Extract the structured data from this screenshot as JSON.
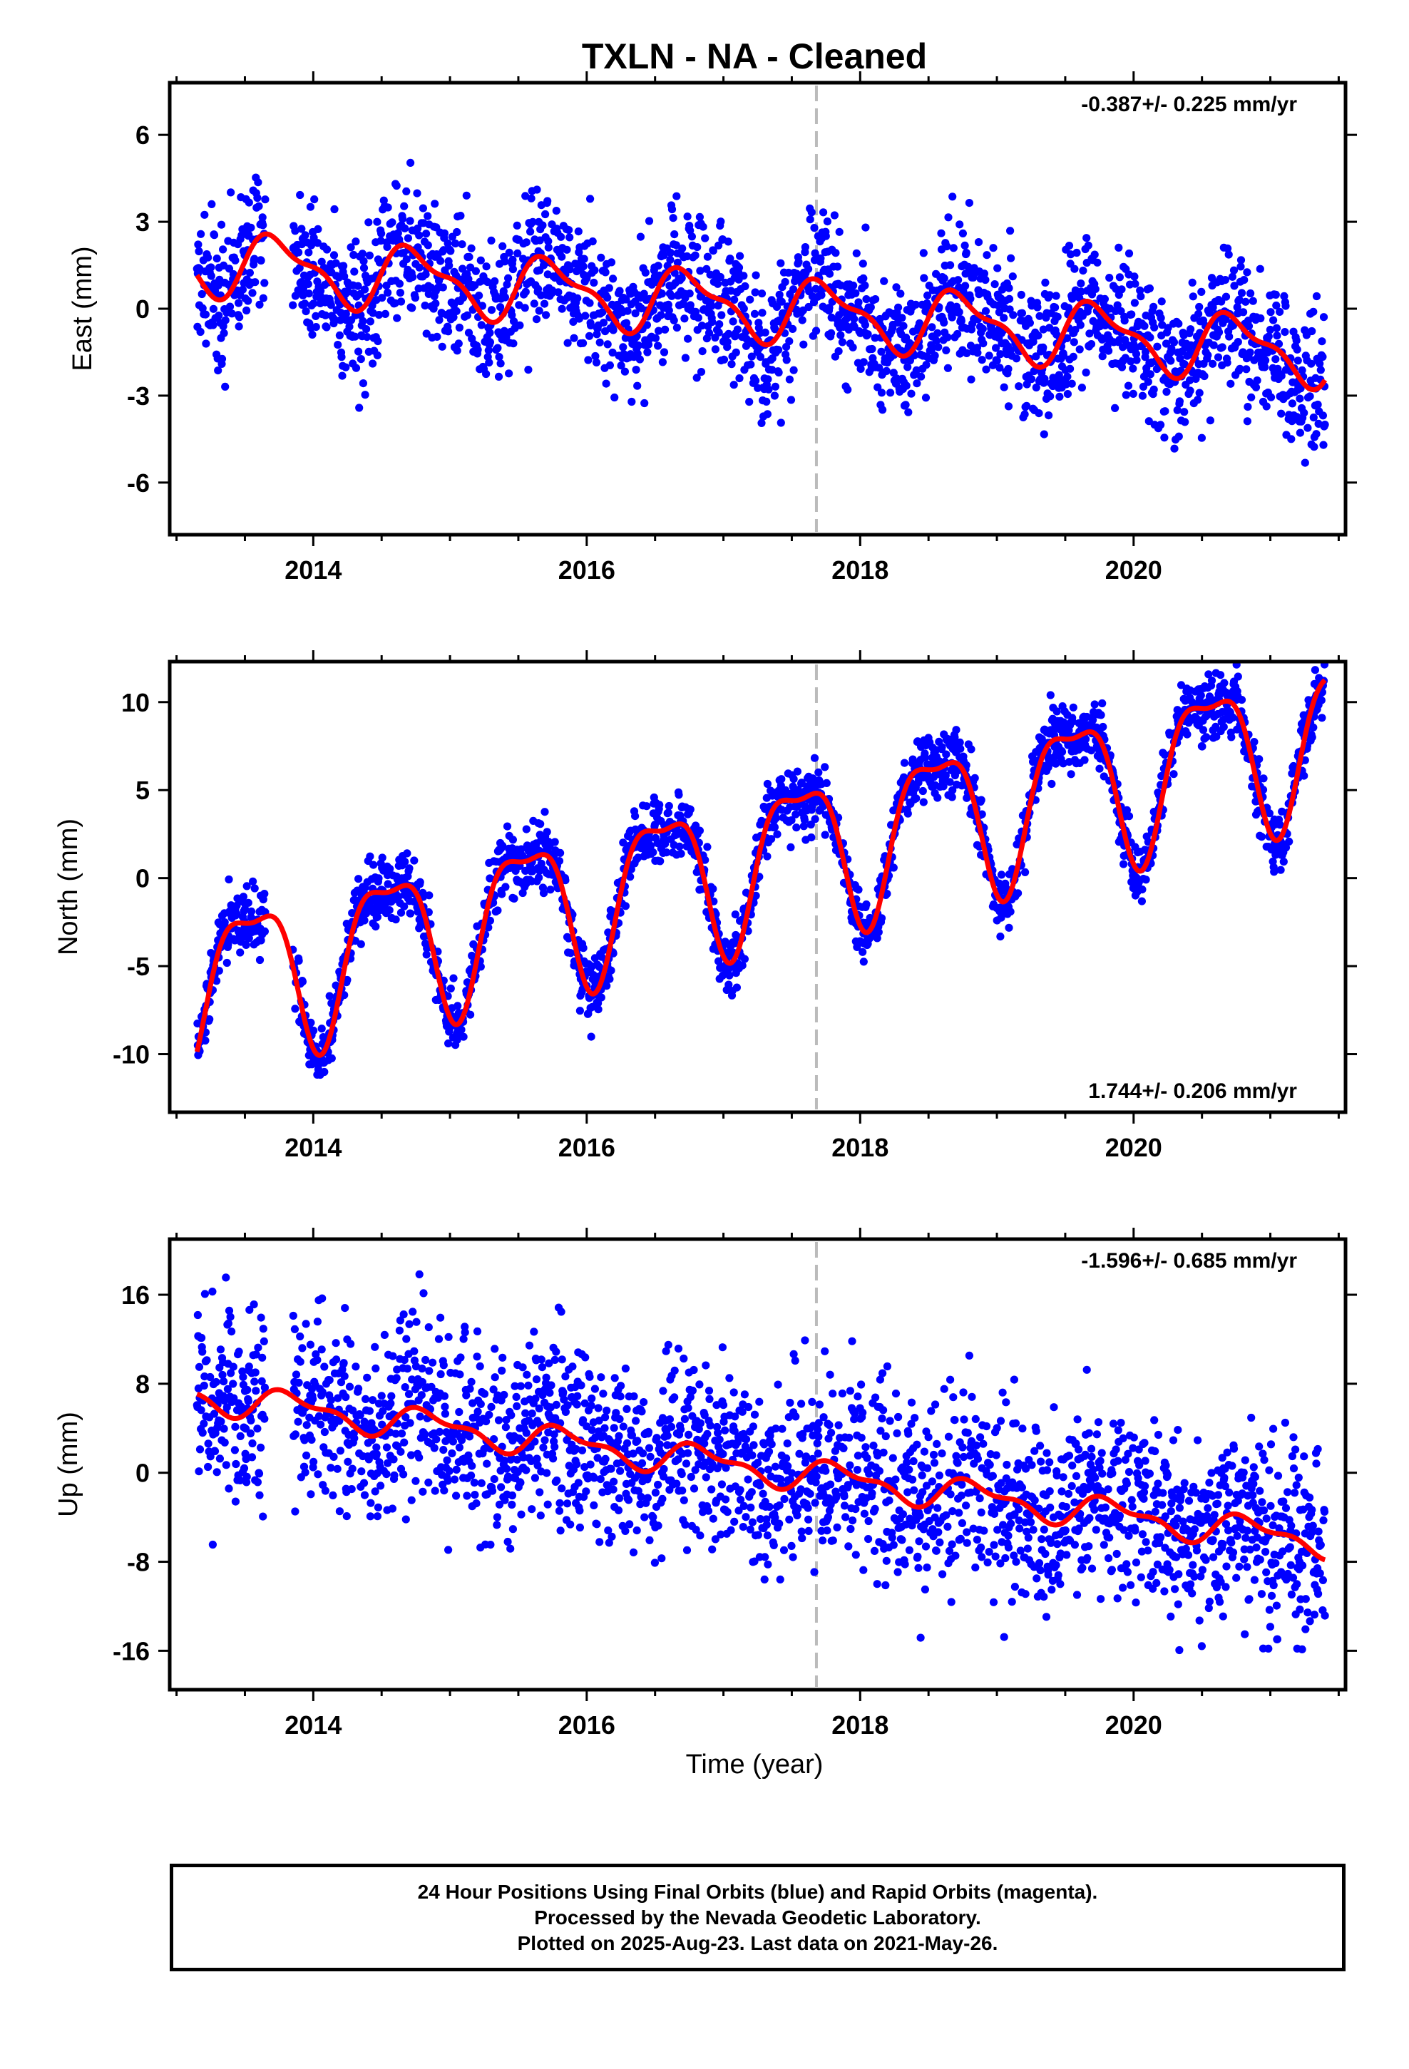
{
  "colors": {
    "final_orbits": "#0000ff",
    "model_fit": "#ff0000",
    "event_line": "#bbbbbb",
    "frame": "#000000"
  },
  "title": "TXLN  - NA - Cleaned",
  "xlabel": "Time (year)",
  "caption": {
    "line1": "24 Hour Positions Using Final Orbits (blue) and Rapid Orbits (magenta).",
    "line2": "Processed by the Nevada Geodetic Laboratory.",
    "line3": "Plotted on 2025-Aug-23. Last data on 2021-May-26."
  },
  "chart_data": [
    {
      "type": "scatter",
      "component": "east",
      "ylabel": "East (mm)",
      "rate_text": "-0.387+/- 0.225 mm/yr",
      "rate_position": "top-right",
      "xlim": [
        2012.95,
        2021.55
      ],
      "ylim": [
        -7.8,
        7.8
      ],
      "xticks": [
        2014,
        2016,
        2018,
        2020
      ],
      "xtick_labels": [
        "2014",
        "2016",
        "2018",
        "2020"
      ],
      "yticks": [
        -6,
        -3,
        0,
        3,
        6
      ],
      "ytick_labels": [
        "-6",
        "-3",
        "0",
        "3",
        "6"
      ],
      "event_line_x": 2017.68,
      "data_start": 2013.15,
      "data_end": 2021.4,
      "data_gap": [
        2013.65,
        2013.85
      ],
      "model": {
        "trend_intercept_2013": 1.7,
        "trend_rate": -0.387,
        "annual_amplitude": 1.0,
        "annual_peak": 0.75,
        "semiannual_amplitude": 0.4,
        "semiannual_peak": 0.1
      },
      "noise_sigma": 1.2,
      "series": [
        {
          "name": "Final Orbits",
          "color": "#0000ff",
          "kind": "points"
        },
        {
          "name": "Model fit",
          "color": "#ff0000",
          "kind": "line"
        }
      ]
    },
    {
      "type": "scatter",
      "component": "north",
      "ylabel": "North (mm)",
      "rate_text": "1.744+/- 0.206 mm/yr",
      "rate_position": "bottom-right",
      "xlim": [
        2012.95,
        2021.55
      ],
      "ylim": [
        -13.3,
        12.3
      ],
      "xticks": [
        2014,
        2016,
        2018,
        2020
      ],
      "xtick_labels": [
        "2014",
        "2016",
        "2018",
        "2020"
      ],
      "yticks": [
        -10,
        -5,
        0,
        5,
        10
      ],
      "ytick_labels": [
        "-10",
        "-5",
        "0",
        "5",
        "10"
      ],
      "event_line_x": 2017.68,
      "data_start": 2013.15,
      "data_end": 2021.4,
      "data_gap": [
        2013.65,
        2013.85
      ],
      "model": {
        "trend_intercept_2013": -6.3,
        "trend_rate": 1.744,
        "annual_amplitude": 4.2,
        "annual_peak": 0.55,
        "semiannual_amplitude": 1.4,
        "semiannual_peak": 0.3
      },
      "noise_sigma": 0.9,
      "series": [
        {
          "name": "Final Orbits",
          "color": "#0000ff",
          "kind": "points"
        },
        {
          "name": "Model fit",
          "color": "#ff0000",
          "kind": "line"
        }
      ]
    },
    {
      "type": "scatter",
      "component": "up",
      "ylabel": "Up (mm)",
      "rate_text": "-1.596+/- 0.685 mm/yr",
      "rate_position": "top-right",
      "xlim": [
        2012.95,
        2021.55
      ],
      "ylim": [
        -19.5,
        21.0
      ],
      "xticks": [
        2014,
        2016,
        2018,
        2020
      ],
      "xtick_labels": [
        "2014",
        "2016",
        "2018",
        "2020"
      ],
      "yticks": [
        -16,
        -8,
        0,
        8,
        16
      ],
      "ytick_labels": [
        "-16",
        "-8",
        "0",
        "8",
        "16"
      ],
      "event_line_x": 2017.68,
      "data_start": 2013.15,
      "data_end": 2021.4,
      "data_gap": [
        2013.65,
        2013.85
      ],
      "model": {
        "trend_intercept_2013": 7.2,
        "trend_rate": -1.596,
        "annual_amplitude": 1.2,
        "annual_peak": 0.85,
        "semiannual_amplitude": 0.6,
        "semiannual_peak": 0.2
      },
      "noise_sigma": 4.3,
      "series": [
        {
          "name": "Final Orbits",
          "color": "#0000ff",
          "kind": "points"
        },
        {
          "name": "Model fit",
          "color": "#ff0000",
          "kind": "line"
        }
      ]
    }
  ]
}
